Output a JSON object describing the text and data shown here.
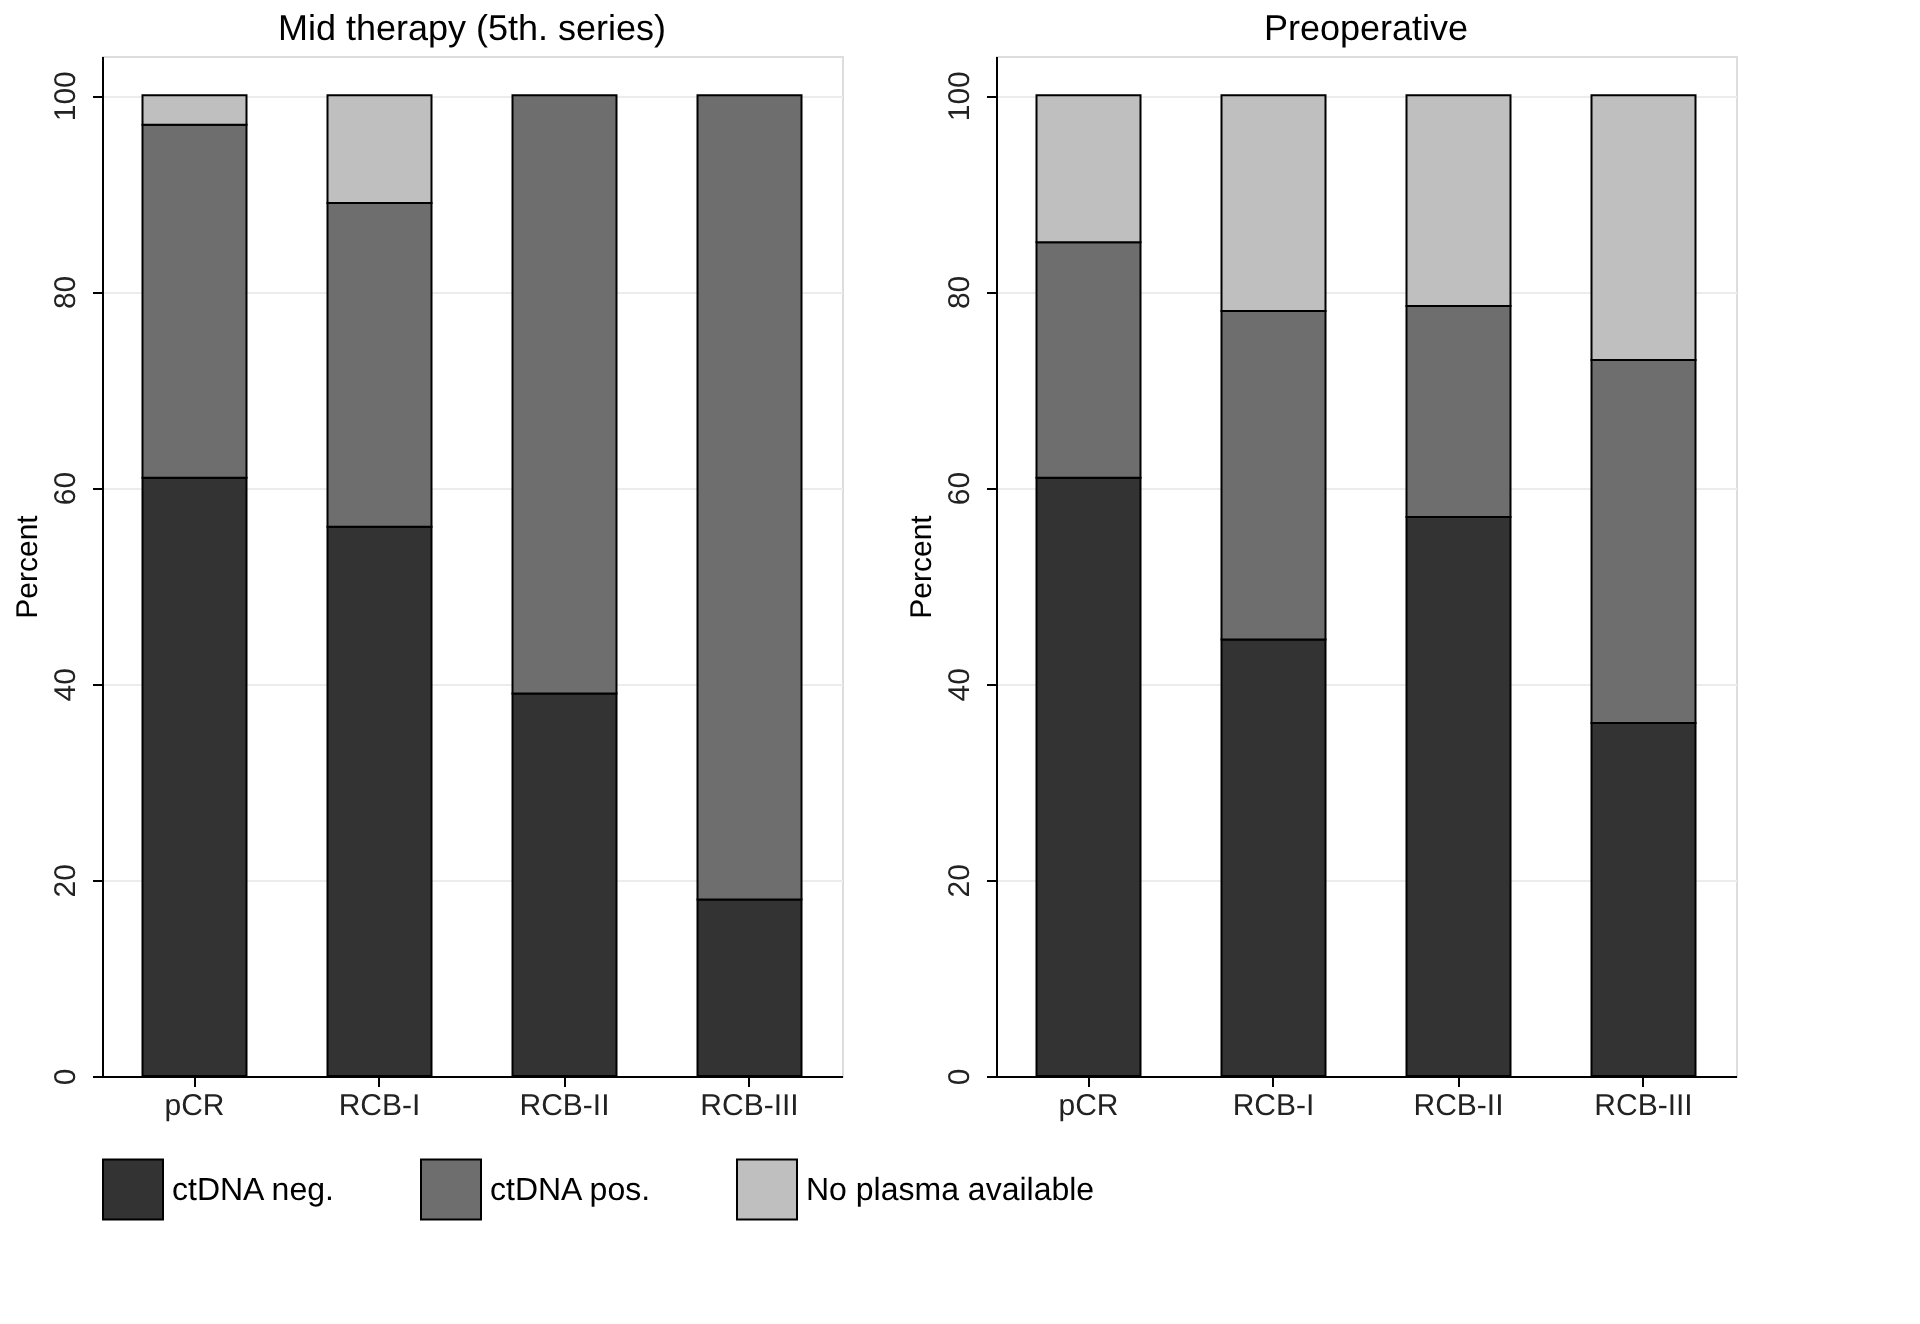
{
  "chart_data": [
    {
      "type": "bar",
      "title": "Mid therapy (5th. series)",
      "ylabel": "Percent",
      "categories": [
        "pCR",
        "RCB-I",
        "RCB-II",
        "RCB-III"
      ],
      "stacked": true,
      "ylim": [
        0,
        104
      ],
      "yticks": [
        0,
        20,
        40,
        60,
        80,
        100
      ],
      "grid": "y",
      "legend": "bottom",
      "series": [
        {
          "name": "ctDNA neg.",
          "color": "#333333",
          "values": [
            61,
            56,
            39,
            18
          ]
        },
        {
          "name": "ctDNA pos.",
          "color": "#6e6e6e",
          "values": [
            36,
            33,
            61,
            82
          ]
        },
        {
          "name": "No plasma available",
          "color": "#bfbfbf",
          "values": [
            3,
            11,
            null,
            null
          ]
        }
      ]
    },
    {
      "type": "bar",
      "title": "Preoperative",
      "ylabel": "Percent",
      "categories": [
        "pCR",
        "RCB-I",
        "RCB-II",
        "RCB-III"
      ],
      "stacked": true,
      "ylim": [
        0,
        104
      ],
      "yticks": [
        0,
        20,
        40,
        60,
        80,
        100
      ],
      "grid": "y",
      "legend": "bottom",
      "series": [
        {
          "name": "ctDNA neg.",
          "color": "#333333",
          "values": [
            61,
            44.5,
            57,
            36
          ]
        },
        {
          "name": "ctDNA pos.",
          "color": "#6e6e6e",
          "values": [
            24,
            33.5,
            21.5,
            37
          ]
        },
        {
          "name": "No plasma available",
          "color": "#bfbfbf",
          "values": [
            15,
            22,
            21.5,
            27
          ]
        }
      ]
    }
  ]
}
